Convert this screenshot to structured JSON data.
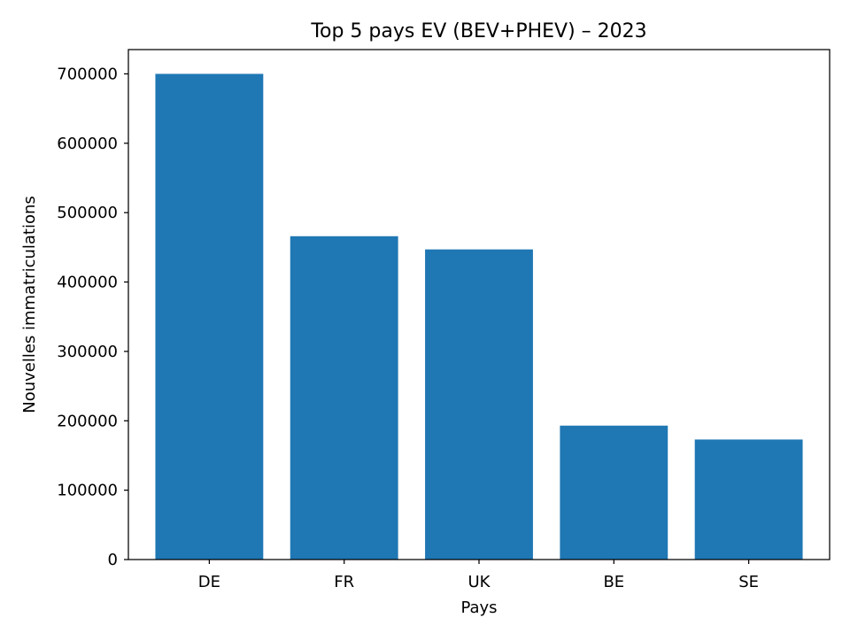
{
  "chart_data": {
    "type": "bar",
    "title": "Top 5 pays EV (BEV+PHEV) – 2023",
    "xlabel": "Pays",
    "ylabel": "Nouvelles immatriculations",
    "categories": [
      "DE",
      "FR",
      "UK",
      "BE",
      "SE"
    ],
    "values": [
      700000,
      466000,
      447000,
      193000,
      173000
    ],
    "ylim": [
      0,
      735000
    ],
    "yticks": [
      0,
      100000,
      200000,
      300000,
      400000,
      500000,
      600000,
      700000
    ],
    "ytick_labels": [
      "0",
      "100000",
      "200000",
      "300000",
      "400000",
      "500000",
      "600000",
      "700000"
    ],
    "grid": false,
    "legend": "none",
    "bar_color": "#1f77b4"
  }
}
